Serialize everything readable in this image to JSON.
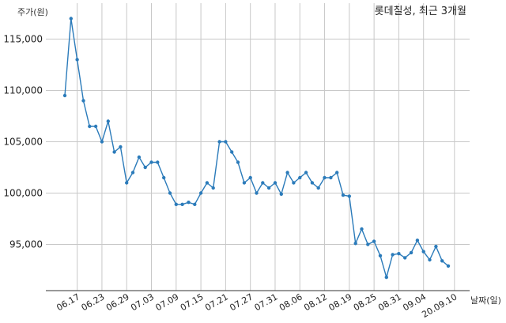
{
  "chart_data": {
    "type": "line",
    "title": "롯데칠성, 최근 3개월",
    "ylabel": "주가(원)",
    "xlabel": "날짜(일)",
    "ylim": [
      90500,
      118500
    ],
    "grid": true,
    "y_ticks": [
      95000,
      100000,
      105000,
      110000,
      115000
    ],
    "y_tick_labels": [
      "95,000",
      "100,000",
      "105,000",
      "110,000",
      "115,000"
    ],
    "x_tick_labels": [
      "06.17",
      "06.23",
      "06.29",
      "07.03",
      "07.09",
      "07.15",
      "07.21",
      "07.27",
      "07.31",
      "08.06",
      "08.12",
      "08.19",
      "08.25",
      "08.31",
      "09.04",
      "20.09.10"
    ],
    "x_tick_indices": [
      2,
      6,
      10,
      14,
      18,
      22,
      26,
      30,
      34,
      38,
      42,
      46,
      50,
      54,
      58,
      63
    ],
    "series": [
      {
        "color": "#2b7bba",
        "values": [
          109500,
          117000,
          113000,
          109000,
          106500,
          106500,
          105000,
          107000,
          104000,
          104500,
          101000,
          102000,
          103500,
          102500,
          103000,
          103000,
          101500,
          100000,
          98900,
          98900,
          99100,
          98900,
          100000,
          101000,
          100500,
          105000,
          105000,
          104000,
          103000,
          101000,
          101500,
          100000,
          101000,
          100500,
          101000,
          99900,
          102000,
          101000,
          101500,
          102000,
          101000,
          100500,
          101500,
          101500,
          102000,
          99800,
          99700,
          95100,
          96500,
          95000,
          95300,
          93900,
          91800,
          94000,
          94100,
          93700,
          94200,
          95400,
          94300,
          93500,
          94800,
          93400,
          92900
        ]
      }
    ]
  }
}
